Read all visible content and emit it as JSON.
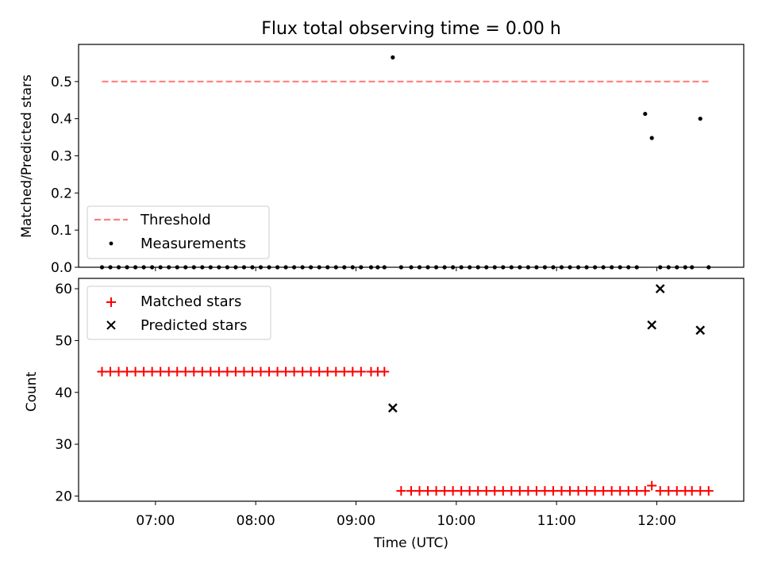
{
  "chart_data": [
    {
      "type": "scatter",
      "title": "Flux total observing time = 0.00 h",
      "ylabel": "Matched/Predicted stars",
      "xlabel": "",
      "x_format": "time_hhmm",
      "xlim": [
        "06:14",
        "12:52"
      ],
      "ylim": [
        0,
        0.6
      ],
      "yticks": [
        0.0,
        0.1,
        0.2,
        0.3,
        0.4,
        0.5
      ],
      "ytick_labels": [
        "0.0",
        "0.1",
        "0.2",
        "0.3",
        "0.4",
        "0.5"
      ],
      "xticks": [
        "07:00",
        "08:00",
        "09:00",
        "10:00",
        "11:00",
        "12:00"
      ],
      "show_xtick_labels": false,
      "legend": {
        "placement": "lower-left",
        "entries": [
          "Threshold",
          "Measurements"
        ]
      },
      "colors": {
        "threshold": "#ff7f7f",
        "measurements": "#000000"
      },
      "series": [
        {
          "name": "Threshold",
          "kind": "dashed-line",
          "x": [
            "06:28",
            "12:31"
          ],
          "y": [
            0.5,
            0.5
          ]
        },
        {
          "name": "Measurements",
          "kind": "dot",
          "x": [
            "06:28",
            "06:33",
            "06:38",
            "06:43",
            "06:48",
            "06:53",
            "06:58",
            "07:03",
            "07:08",
            "07:13",
            "07:18",
            "07:23",
            "07:28",
            "07:33",
            "07:38",
            "07:43",
            "07:48",
            "07:53",
            "07:58",
            "08:03",
            "08:08",
            "08:13",
            "08:18",
            "08:23",
            "08:28",
            "08:33",
            "08:38",
            "08:43",
            "08:48",
            "08:53",
            "08:58",
            "09:03",
            "09:09",
            "09:13",
            "09:17",
            "09:22",
            "09:27",
            "09:33",
            "09:38",
            "09:43",
            "09:48",
            "09:53",
            "09:58",
            "10:03",
            "10:08",
            "10:13",
            "10:18",
            "10:23",
            "10:28",
            "10:33",
            "10:38",
            "10:43",
            "10:48",
            "10:53",
            "10:58",
            "11:03",
            "11:08",
            "11:13",
            "11:18",
            "11:23",
            "11:28",
            "11:33",
            "11:38",
            "11:43",
            "11:48",
            "11:53",
            "11:57",
            "12:02",
            "12:07",
            "12:12",
            "12:17",
            "12:21",
            "12:26",
            "12:31"
          ],
          "y": [
            0,
            0,
            0,
            0,
            0,
            0,
            0,
            0,
            0,
            0,
            0,
            0,
            0,
            0,
            0,
            0,
            0,
            0,
            0,
            0,
            0,
            0,
            0,
            0,
            0,
            0,
            0,
            0,
            0,
            0,
            0,
            0,
            0,
            0,
            0,
            0.565,
            0,
            0,
            0,
            0,
            0,
            0,
            0,
            0,
            0,
            0,
            0,
            0,
            0,
            0,
            0,
            0,
            0,
            0,
            0,
            0,
            0,
            0,
            0,
            0,
            0,
            0,
            0,
            0,
            0,
            0.413,
            0.348,
            0,
            0,
            0,
            0,
            0,
            0.4,
            0
          ]
        }
      ]
    },
    {
      "type": "scatter",
      "title": "",
      "ylabel": "Count",
      "xlabel": "Time (UTC)",
      "x_format": "time_hhmm",
      "xlim": [
        "06:14",
        "12:52"
      ],
      "ylim": [
        19,
        62
      ],
      "yticks": [
        20,
        30,
        40,
        50,
        60
      ],
      "ytick_labels": [
        "20",
        "30",
        "40",
        "50",
        "60"
      ],
      "xticks": [
        "07:00",
        "08:00",
        "09:00",
        "10:00",
        "11:00",
        "12:00"
      ],
      "show_xtick_labels": true,
      "legend": {
        "placement": "upper-left",
        "entries": [
          "Matched stars",
          "Predicted stars"
        ]
      },
      "colors": {
        "matched": "#ff0000",
        "predicted": "#000000"
      },
      "series": [
        {
          "name": "Matched stars",
          "kind": "plus",
          "x": [
            "06:28",
            "06:33",
            "06:38",
            "06:43",
            "06:48",
            "06:53",
            "06:58",
            "07:03",
            "07:08",
            "07:13",
            "07:18",
            "07:23",
            "07:28",
            "07:33",
            "07:38",
            "07:43",
            "07:48",
            "07:53",
            "07:58",
            "08:03",
            "08:08",
            "08:13",
            "08:18",
            "08:23",
            "08:28",
            "08:33",
            "08:38",
            "08:43",
            "08:48",
            "08:53",
            "08:58",
            "09:03",
            "09:09",
            "09:13",
            "09:17",
            "09:27",
            "09:33",
            "09:38",
            "09:43",
            "09:48",
            "09:53",
            "09:58",
            "10:03",
            "10:08",
            "10:13",
            "10:18",
            "10:23",
            "10:28",
            "10:33",
            "10:38",
            "10:43",
            "10:48",
            "10:53",
            "10:58",
            "11:03",
            "11:08",
            "11:13",
            "11:18",
            "11:23",
            "11:28",
            "11:33",
            "11:38",
            "11:43",
            "11:48",
            "11:53",
            "11:57",
            "12:02",
            "12:07",
            "12:12",
            "12:17",
            "12:21",
            "12:26",
            "12:31"
          ],
          "y": [
            44,
            44,
            44,
            44,
            44,
            44,
            44,
            44,
            44,
            44,
            44,
            44,
            44,
            44,
            44,
            44,
            44,
            44,
            44,
            44,
            44,
            44,
            44,
            44,
            44,
            44,
            44,
            44,
            44,
            44,
            44,
            44,
            44,
            44,
            44,
            21,
            21,
            21,
            21,
            21,
            21,
            21,
            21,
            21,
            21,
            21,
            21,
            21,
            21,
            21,
            21,
            21,
            21,
            21,
            21,
            21,
            21,
            21,
            21,
            21,
            21,
            21,
            21,
            21,
            21,
            22,
            21,
            21,
            21,
            21,
            21,
            21,
            21
          ]
        },
        {
          "name": "Predicted stars",
          "kind": "cross",
          "x": [
            "09:22",
            "11:57",
            "12:02",
            "12:26"
          ],
          "y": [
            37,
            53,
            60,
            52
          ]
        }
      ]
    }
  ]
}
